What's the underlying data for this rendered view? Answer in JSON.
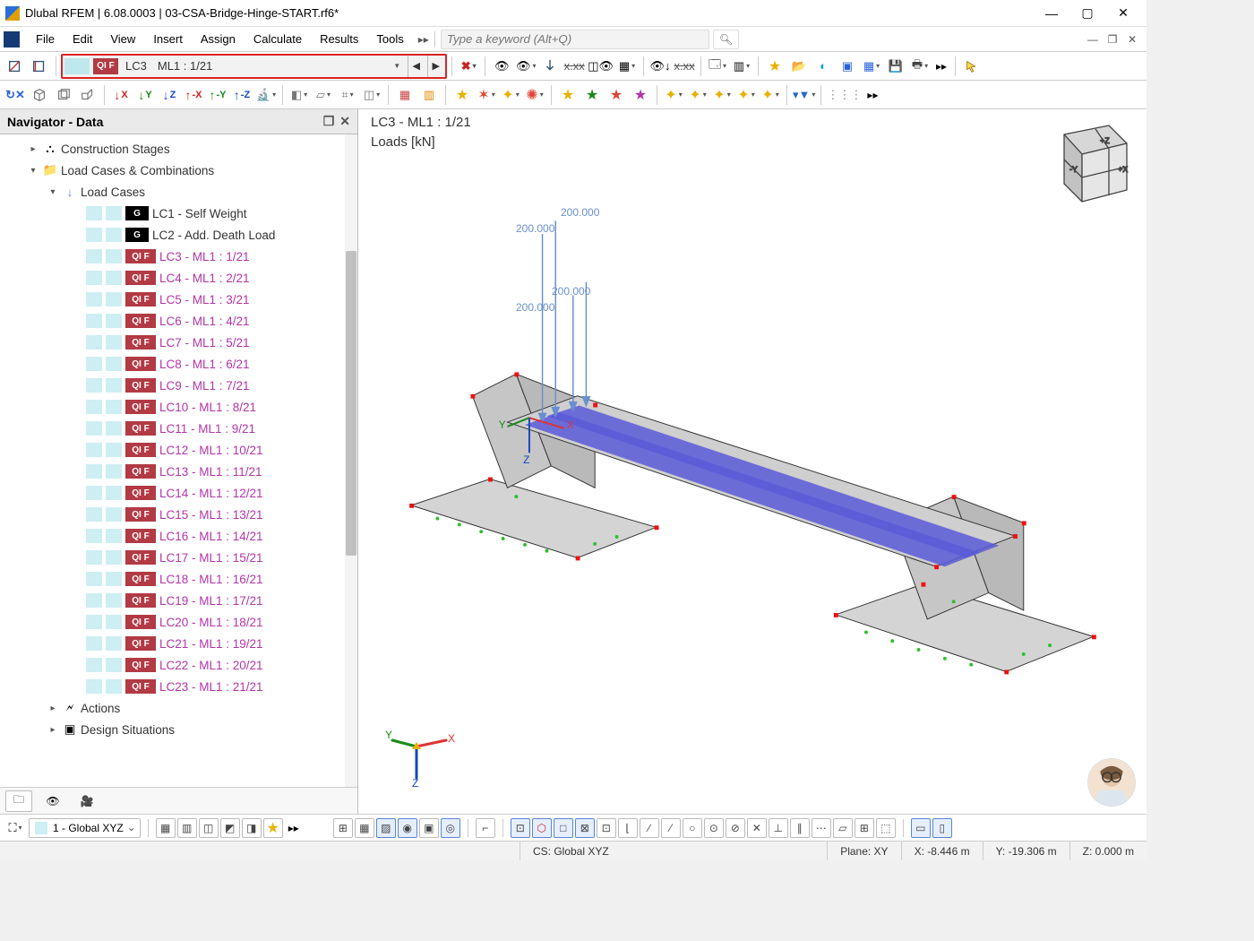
{
  "window": {
    "title": "Dlubal RFEM | 6.08.0003 | 03-CSA-Bridge-Hinge-START.rf6*"
  },
  "menu": {
    "items": [
      "File",
      "Edit",
      "View",
      "Insert",
      "Assign",
      "Calculate",
      "Results",
      "Tools"
    ],
    "search_placeholder": "Type a keyword (Alt+Q)"
  },
  "loadcase_selector": {
    "chip1": "",
    "chip2": "QI F",
    "lc": "LC3",
    "ml": "ML1 : 1/21"
  },
  "navigator": {
    "title": "Navigator - Data"
  },
  "tree": {
    "l1": {
      "label": "Construction Stages"
    },
    "l2": {
      "label": "Load Cases & Combinations"
    },
    "l3": {
      "label": "Load Cases"
    },
    "g1": {
      "chip": "G",
      "label": "LC1 - Self Weight"
    },
    "g2": {
      "chip": "G",
      "label": "LC2 - Add. Death Load"
    },
    "q": {
      "chip": "QI F"
    },
    "lcs": [
      "LC3 - ML1 : 1/21",
      "LC4 - ML1 : 2/21",
      "LC5 - ML1 : 3/21",
      "LC6 - ML1 : 4/21",
      "LC7 - ML1 : 5/21",
      "LC8 - ML1 : 6/21",
      "LC9 - ML1 : 7/21",
      "LC10 - ML1 : 8/21",
      "LC11 - ML1 : 9/21",
      "LC12 - ML1 : 10/21",
      "LC13 - ML1 : 11/21",
      "LC14 - ML1 : 12/21",
      "LC15 - ML1 : 13/21",
      "LC16 - ML1 : 14/21",
      "LC17 - ML1 : 15/21",
      "LC18 - ML1 : 16/21",
      "LC19 - ML1 : 17/21",
      "LC20 - ML1 : 18/21",
      "LC21 - ML1 : 19/21",
      "LC22 - ML1 : 20/21",
      "LC23 - ML1 : 21/21"
    ],
    "actions": "Actions",
    "design": "Design Situations"
  },
  "viewport": {
    "title": "LC3 - ML1 : 1/21",
    "subtitle": "Loads [kN]",
    "loads": [
      "200.000",
      "200.000",
      "200.000",
      "200.000"
    ]
  },
  "bottom": {
    "cs_combo": "1 - Global XYZ"
  },
  "status": {
    "cs": "CS: Global XYZ",
    "plane": "Plane: XY",
    "x": "X: -8.446 m",
    "y": "Y: -19.306 m",
    "z": "Z: 0.000 m"
  },
  "colors": {
    "accent_red": "#d22",
    "chip_red": "#b23a44",
    "chip_cyan": "#bfe8ee",
    "magenta": "#b235a9",
    "load_blue": "#6a8fcf",
    "bridge_blue": "#5a5ad8"
  }
}
